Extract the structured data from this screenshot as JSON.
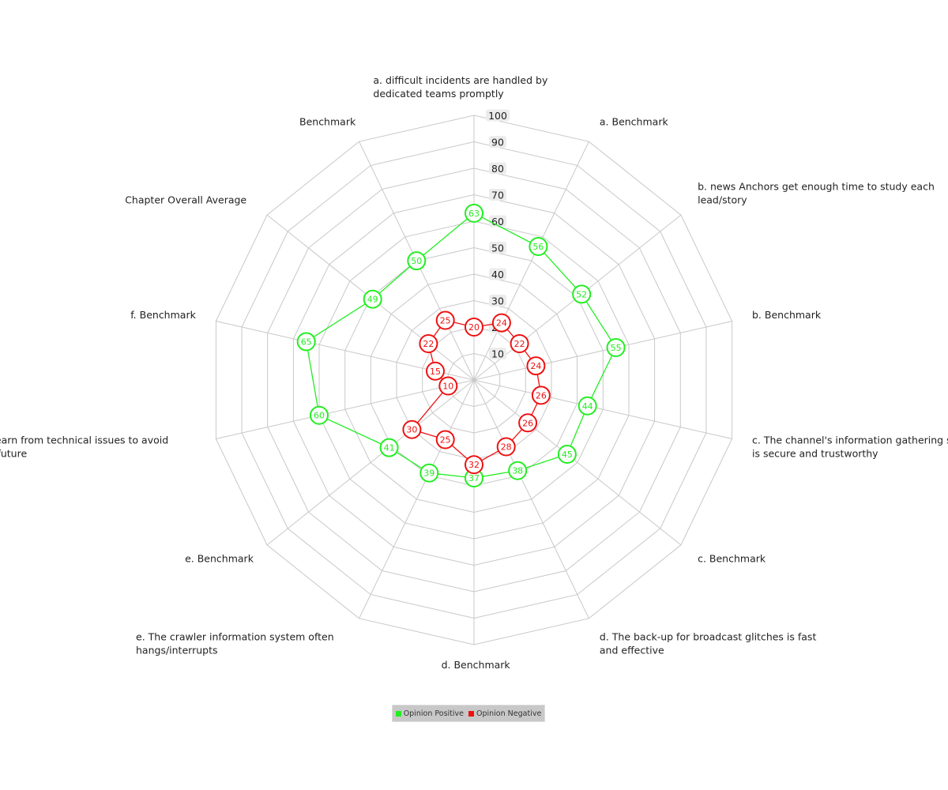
{
  "chart_data": {
    "type": "radar",
    "ylim": [
      0,
      100
    ],
    "ticks": [
      10,
      20,
      30,
      40,
      50,
      60,
      70,
      80,
      90,
      100
    ],
    "categories": [
      "a. difficult incidents are handled by dedicated teams promptly",
      "a. Benchmark",
      "b. news Anchors get enough time to study each lead/story",
      "b. Benchmark",
      "c. The channel's information gathering system is secure and trustworthy",
      "c. Benchmark",
      "d. The back-up for broadcast glitches is fast and effective",
      "d. Benchmark",
      "e. The crawler information system often hangs/interrupts",
      "e. Benchmark",
      "f. They learn from technical issues to avoid them in future",
      "f. Benchmark",
      "Chapter Overall Average",
      "Benchmark"
    ],
    "series": [
      {
        "name": "Opinion Positive",
        "color": "#22ee22",
        "values": [
          63,
          56,
          52,
          55,
          44,
          45,
          38,
          37,
          39,
          41,
          60,
          65,
          49,
          50
        ]
      },
      {
        "name": "Opinion Negative",
        "color": "#ee1111",
        "values": [
          20,
          24,
          22,
          24,
          26,
          26,
          28,
          32,
          25,
          30,
          10,
          15,
          22,
          25
        ]
      }
    ]
  }
}
